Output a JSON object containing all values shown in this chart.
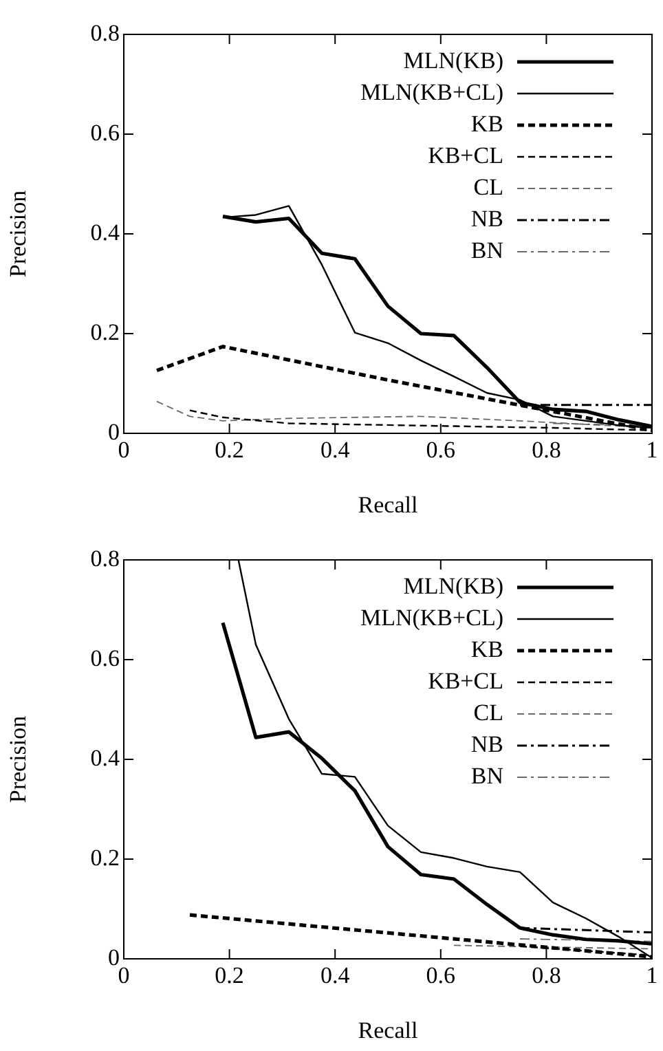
{
  "chart_data": [
    {
      "type": "line",
      "xlabel": "Recall",
      "ylabel": "Precision",
      "xlim": [
        0,
        1
      ],
      "ylim": [
        0,
        0.8
      ],
      "xticks": [
        0,
        0.2,
        0.4,
        0.6,
        0.8,
        1
      ],
      "yticks": [
        0,
        0.2,
        0.4,
        0.6,
        0.8
      ],
      "grid": false,
      "legend": "top right",
      "marker": "none",
      "series": [
        {
          "name": "MLN(KB)",
          "color": "#000000",
          "line_style": "solid",
          "x": [
            0.1875,
            0.25,
            0.3125,
            0.375,
            0.4375,
            0.5,
            0.5625,
            0.625,
            0.6875,
            0.75,
            0.8125,
            0.875,
            0.9375,
            1
          ],
          "values": [
            0.435,
            0.424,
            0.431,
            0.361,
            0.35,
            0.255,
            0.2,
            0.196,
            0.132,
            0.062,
            0.048,
            0.044,
            0.027,
            0.014
          ]
        },
        {
          "name": "MLN(KB+CL)",
          "color": "#000000",
          "line_style": "solid",
          "x": [
            0.1875,
            0.25,
            0.3125,
            0.375,
            0.4375,
            0.5,
            0.5625,
            0.625,
            0.6875,
            0.75,
            0.8125,
            0.875,
            0.9375,
            1
          ],
          "values": [
            0.433,
            0.438,
            0.456,
            0.338,
            0.202,
            0.181,
            0.146,
            0.114,
            0.081,
            0.067,
            0.034,
            0.025,
            0.016,
            0.011
          ]
        },
        {
          "name": "KB",
          "color": "#000000",
          "line_style": "dashed",
          "x": [
            0.0625,
            0.1875,
            0.5,
            1
          ],
          "values": [
            0.126,
            0.174,
            0.107,
            0.006
          ]
        },
        {
          "name": "KB+CL",
          "color": "#000000",
          "line_style": "dashed",
          "x": [
            0.125,
            0.1875,
            0.3125,
            0.8125,
            1
          ],
          "values": [
            0.046,
            0.032,
            0.02,
            0.011,
            0.006
          ]
        },
        {
          "name": "CL",
          "color": "#666666",
          "line_style": "dashed",
          "x": [
            0.0625,
            0.125,
            0.1875,
            0.3125,
            0.5625,
            0.75,
            1
          ],
          "values": [
            0.064,
            0.034,
            0.025,
            0.03,
            0.034,
            0.025,
            0.011
          ]
        },
        {
          "name": "NB",
          "color": "#000000",
          "line_style": "dashdot",
          "x": [
            0.75,
            1
          ],
          "values": [
            0.057,
            0.057
          ]
        },
        {
          "name": "BN",
          "color": "#666666",
          "line_style": "dashdot",
          "x": [
            0.8125,
            1
          ],
          "values": [
            0.02,
            0.015
          ]
        }
      ]
    },
    {
      "type": "line",
      "xlabel": "Recall",
      "ylabel": "Precision",
      "xlim": [
        0,
        1
      ],
      "ylim": [
        0,
        0.8
      ],
      "xticks": [
        0,
        0.2,
        0.4,
        0.6,
        0.8,
        1
      ],
      "yticks": [
        0,
        0.2,
        0.4,
        0.6,
        0.8
      ],
      "grid": false,
      "legend": "top right",
      "marker": "none",
      "series": [
        {
          "name": "MLN(KB)",
          "color": "#000000",
          "line_style": "solid",
          "x": [
            0.1875,
            0.25,
            0.3125,
            0.375,
            0.4375,
            0.5,
            0.5625,
            0.625,
            0.6875,
            0.75,
            0.8125,
            0.875,
            0.9375,
            1
          ],
          "values": [
            0.674,
            0.444,
            0.455,
            0.402,
            0.337,
            0.225,
            0.169,
            0.16,
            0.109,
            0.062,
            0.048,
            0.039,
            0.036,
            0.03
          ]
        },
        {
          "name": "MLN(KB+CL)",
          "color": "#000000",
          "line_style": "solid",
          "x": [
            0.217,
            0.25,
            0.3125,
            0.375,
            0.4375,
            0.5,
            0.5625,
            0.625,
            0.6875,
            0.75,
            0.8125,
            0.875,
            0.9375,
            1
          ],
          "values": [
            0.8,
            0.63,
            0.481,
            0.371,
            0.365,
            0.267,
            0.214,
            0.202,
            0.185,
            0.174,
            0.113,
            0.081,
            0.044,
            0.002
          ]
        },
        {
          "name": "KB",
          "color": "#000000",
          "line_style": "dashed",
          "x": [
            0.125,
            1
          ],
          "values": [
            0.088,
            0.004
          ]
        },
        {
          "name": "KB+CL",
          "color": "#000000",
          "line_style": "dashed",
          "x": [
            0.75,
            1
          ],
          "values": [
            0.025,
            0.007
          ]
        },
        {
          "name": "CL",
          "color": "#666666",
          "line_style": "dashed",
          "x": [
            0.625,
            1
          ],
          "values": [
            0.027,
            0.02
          ]
        },
        {
          "name": "NB",
          "color": "#000000",
          "line_style": "dashdot",
          "x": [
            0.75,
            1
          ],
          "values": [
            0.062,
            0.053
          ]
        },
        {
          "name": "BN",
          "color": "#666666",
          "line_style": "dashdot",
          "x": [
            0.75,
            1
          ],
          "values": [
            0.04,
            0.035
          ]
        }
      ]
    }
  ]
}
